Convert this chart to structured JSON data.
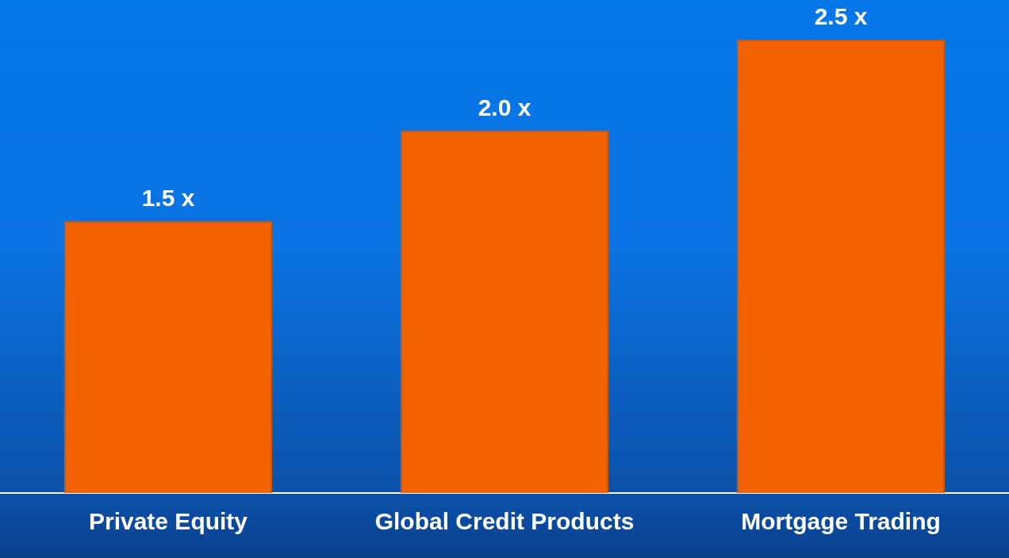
{
  "chart_data": {
    "type": "bar",
    "categories": [
      "Private Equity",
      "Global Credit Products",
      "Mortgage Trading"
    ],
    "values": [
      1.5,
      2.0,
      2.5
    ],
    "value_labels": [
      "1.5 x",
      "2.0 x",
      "2.5 x"
    ],
    "color": "#f26200",
    "grid": false,
    "legend": false
  }
}
